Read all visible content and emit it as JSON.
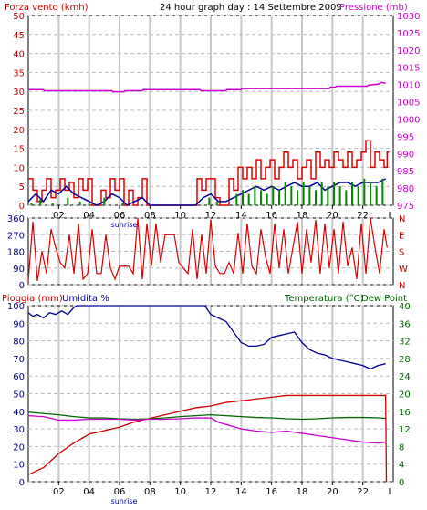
{
  "header": {
    "title": "24 hour graph day : 14 Settembre 2009",
    "left_label": "Forza vento (kmh)",
    "right_label": "Pressione (mb)",
    "colors": {
      "left_label": "#cc0000",
      "title": "#000000",
      "right_label": "#cc00cc"
    }
  },
  "panel2": {
    "colors": {
      "wind_dir": "#dd0000"
    }
  },
  "panel3": {
    "left_label_rain": "Pioggia (mm)",
    "left_label_hum": "Umidita %",
    "right_label_temp": "Temperatura (°C)",
    "right_label_dew": "Dew Point",
    "colors": {
      "rain": "#cc0000",
      "hum": "#000099",
      "temp": "#006600",
      "dew": "#cc00cc"
    }
  },
  "x_axis": {
    "hour_labels": [
      "02",
      "04",
      "06",
      "08",
      "10",
      "12",
      "14",
      "16",
      "18",
      "20",
      "22"
    ],
    "sunrise_label": "sunrise",
    "end_marker": "I"
  },
  "chart_data": [
    {
      "type": "line",
      "name": "wind-pressure",
      "x_range": [
        0,
        24
      ],
      "ylim_left": [
        0,
        50
      ],
      "yticks_left": [
        0,
        5,
        10,
        15,
        20,
        25,
        30,
        35,
        40,
        45,
        50
      ],
      "ylim_right": [
        975,
        1030
      ],
      "yticks_right": [
        975,
        980,
        985,
        990,
        995,
        1000,
        1005,
        1010,
        1015,
        1020,
        1025,
        1030
      ],
      "series": [
        {
          "axis": "right",
          "color": "#cc00cc",
          "x": [
            0,
            1,
            1.05,
            5.5,
            5.55,
            6.3,
            6.35,
            7.5,
            7.55,
            11.3,
            11.35,
            13.0,
            13.05,
            14.0,
            14.05,
            19.8,
            19.85,
            20.2,
            20.25,
            22.3,
            22.35,
            23.0,
            23.2,
            23.5
          ],
          "values": [
            1008.5,
            1008.5,
            1008.2,
            1008.2,
            1007.9,
            1007.9,
            1008.2,
            1008.2,
            1008.5,
            1008.5,
            1008.2,
            1008.2,
            1008.5,
            1008.5,
            1008.8,
            1008.8,
            1009.2,
            1009.2,
            1009.5,
            1009.5,
            1009.8,
            1010.1,
            1010.6,
            1010.4
          ]
        },
        {
          "axis": "left",
          "color": "#dd0000",
          "style": "gust-steps",
          "x": [
            0,
            0.3,
            0.6,
            0.9,
            1.2,
            1.5,
            1.8,
            2.1,
            2.4,
            2.7,
            3.0,
            3.3,
            3.6,
            3.9,
            4.2,
            4.5,
            4.8,
            5.1,
            5.4,
            5.7,
            6.0,
            6.3,
            6.6,
            6.9,
            7.2,
            7.5,
            7.8,
            8.1,
            8.4,
            8.7,
            9.0,
            9.3,
            9.6,
            9.9,
            10.2,
            10.5,
            10.8,
            11.1,
            11.4,
            11.7,
            12.0,
            12.3,
            12.6,
            12.9,
            13.2,
            13.5,
            13.8,
            14.1,
            14.4,
            14.7,
            15.0,
            15.3,
            15.6,
            15.9,
            16.2,
            16.5,
            16.8,
            17.1,
            17.4,
            17.7,
            18.0,
            18.3,
            18.6,
            18.9,
            19.2,
            19.5,
            19.8,
            20.1,
            20.4,
            20.7,
            21.0,
            21.3,
            21.6,
            21.9,
            22.2,
            22.5,
            22.8,
            23.1,
            23.4,
            23.6
          ],
          "values": [
            7,
            4,
            1,
            4,
            7,
            2,
            4,
            7,
            4,
            6,
            2,
            7,
            4,
            7,
            0,
            0,
            4,
            2,
            7,
            4,
            7,
            0,
            4,
            0,
            2,
            7,
            0,
            0,
            0,
            0,
            0,
            0,
            0,
            0,
            0,
            0,
            0,
            7,
            4,
            7,
            7,
            2,
            0,
            0,
            7,
            4,
            10,
            7,
            10,
            7,
            12,
            7,
            10,
            12,
            7,
            10,
            14,
            10,
            12,
            7,
            10,
            12,
            7,
            14,
            10,
            12,
            10,
            14,
            12,
            10,
            14,
            10,
            12,
            14,
            17,
            10,
            14,
            12,
            10,
            14
          ]
        },
        {
          "axis": "left",
          "color": "#000099",
          "x": [
            0,
            0.5,
            1.0,
            1.5,
            2.0,
            2.5,
            3.0,
            3.5,
            4.0,
            4.5,
            5.0,
            5.5,
            6.0,
            6.5,
            7.0,
            7.5,
            8.0,
            8.5,
            9.0,
            9.5,
            10.0,
            10.5,
            11.0,
            11.5,
            12.0,
            12.5,
            13.0,
            13.5,
            14.0,
            14.5,
            15.0,
            15.5,
            16.0,
            16.5,
            17.0,
            17.5,
            18.0,
            18.5,
            19.0,
            19.5,
            20.0,
            20.5,
            21.0,
            21.5,
            22.0,
            22.5,
            23.0,
            23.5
          ],
          "values": [
            1,
            3,
            1,
            4,
            3,
            5,
            3,
            2,
            1,
            0,
            1,
            3,
            2,
            0,
            1,
            2,
            0,
            0,
            0,
            0,
            0,
            0,
            0,
            2,
            3,
            1,
            1,
            2,
            3,
            4,
            5,
            4,
            5,
            4,
            5,
            6,
            5,
            5,
            6,
            4,
            5,
            6,
            6,
            5,
            6,
            6,
            6,
            7
          ]
        },
        {
          "axis": "left",
          "color": "#008800",
          "style": "bars",
          "x": [
            0.2,
            0.8,
            1.6,
            2.6,
            3.4,
            4.0,
            5.0,
            6.2,
            11.9,
            12.4,
            13.7,
            14.1,
            14.5,
            14.9,
            15.3,
            15.7,
            16.1,
            16.5,
            16.9,
            17.3,
            17.7,
            18.1,
            18.5,
            18.9,
            19.3,
            19.7,
            20.1,
            20.5,
            20.9,
            21.3,
            21.7,
            22.1,
            22.5,
            22.9,
            23.3
          ],
          "values": [
            0.5,
            1.5,
            0.5,
            2,
            1,
            0.5,
            2,
            0.5,
            2,
            1,
            3,
            4,
            3,
            5,
            4,
            3,
            5,
            4,
            6,
            5,
            4,
            6,
            5,
            4,
            6,
            5,
            6,
            5,
            4,
            6,
            5,
            7,
            6,
            5,
            7
          ]
        }
      ]
    },
    {
      "type": "line",
      "name": "wind-direction",
      "x_range": [
        0,
        24
      ],
      "ylim": [
        0,
        360
      ],
      "yticks": [
        0,
        90,
        180,
        270,
        360
      ],
      "compass_labels": [
        "N",
        "W",
        "S",
        "E",
        "N"
      ],
      "series": [
        {
          "color": "#dd0000",
          "x": [
            0,
            0.3,
            0.6,
            0.9,
            1.2,
            1.5,
            1.8,
            2.1,
            2.4,
            2.7,
            3.0,
            3.3,
            3.6,
            3.9,
            4.2,
            4.5,
            4.8,
            5.1,
            5.4,
            5.7,
            6.0,
            6.3,
            6.6,
            6.9,
            7.2,
            7.5,
            7.8,
            8.1,
            8.4,
            8.7,
            9.0,
            9.3,
            9.6,
            9.9,
            10.2,
            10.5,
            10.8,
            11.1,
            11.4,
            11.7,
            12.0,
            12.3,
            12.6,
            12.9,
            13.2,
            13.5,
            13.8,
            14.1,
            14.4,
            14.7,
            15.0,
            15.3,
            15.6,
            15.9,
            16.2,
            16.5,
            16.8,
            17.1,
            17.4,
            17.7,
            18.0,
            18.3,
            18.6,
            18.9,
            19.2,
            19.5,
            19.8,
            20.1,
            20.4,
            20.7,
            21.0,
            21.3,
            21.6,
            21.9,
            22.2,
            22.5,
            22.8,
            23.1,
            23.4,
            23.6
          ],
          "values": [
            20,
            340,
            20,
            180,
            60,
            300,
            200,
            120,
            90,
            270,
            60,
            330,
            30,
            60,
            300,
            60,
            60,
            270,
            90,
            30,
            100,
            100,
            100,
            60,
            360,
            30,
            330,
            100,
            330,
            120,
            270,
            270,
            270,
            120,
            90,
            60,
            300,
            30,
            270,
            60,
            350,
            100,
            60,
            60,
            120,
            60,
            280,
            60,
            330,
            100,
            60,
            300,
            150,
            60,
            330,
            90,
            300,
            60,
            200,
            340,
            60,
            300,
            120,
            350,
            60,
            330,
            90,
            300,
            60,
            340,
            100,
            200,
            30,
            330,
            60,
            360,
            200,
            60,
            300,
            200
          ]
        }
      ]
    },
    {
      "type": "line",
      "name": "rain-humidity-temp",
      "x_range": [
        0,
        24
      ],
      "ylim_left": [
        0,
        100
      ],
      "yticks_left": [
        0,
        10,
        20,
        30,
        40,
        50,
        60,
        70,
        80,
        90,
        100
      ],
      "ylim_right": [
        0,
        40
      ],
      "yticks_right": [
        0,
        4,
        8,
        12,
        16,
        20,
        24,
        28,
        32,
        36,
        40
      ],
      "series": [
        {
          "axis": "right",
          "color": "#000099",
          "name": "humidity",
          "x": [
            0,
            0.3,
            0.6,
            1.0,
            1.4,
            1.8,
            2.2,
            2.6,
            3.0,
            3.2,
            4.0,
            5.0,
            6.0,
            7.0,
            8.0,
            9.0,
            10.0,
            11.0,
            11.6,
            12.0,
            12.5,
            13.0,
            13.5,
            14.0,
            14.5,
            15.0,
            15.5,
            16.0,
            16.5,
            17.0,
            17.5,
            18.0,
            18.5,
            19.0,
            19.5,
            20.0,
            20.5,
            21.0,
            21.5,
            22.0,
            22.5,
            23.0,
            23.5
          ],
          "values": [
            96,
            94,
            95,
            93,
            96,
            95,
            97,
            95,
            99,
            100,
            100,
            100,
            100,
            100,
            100,
            100,
            100,
            100,
            100,
            95,
            93,
            91,
            85,
            79,
            77,
            77,
            78,
            82,
            83,
            84,
            85,
            79,
            75,
            73,
            72,
            70,
            69,
            68,
            67,
            66,
            64,
            66,
            67
          ]
        },
        {
          "axis": "left",
          "color": "#cc0000",
          "name": "rain",
          "x": [
            0,
            0.5,
            1.0,
            1.5,
            2.0,
            3.0,
            4.0,
            5.0,
            6.0,
            7.0,
            8.0,
            9.0,
            10.0,
            11.0,
            12.0,
            13.0,
            14.0,
            15.0,
            16.0,
            17.0,
            18.0,
            19.0,
            20.0,
            21.0,
            22.0,
            23.0,
            23.5,
            23.55
          ],
          "values": [
            4,
            6,
            8,
            12,
            16,
            22,
            27,
            29,
            31,
            34,
            36,
            38,
            40,
            42,
            43,
            45,
            46,
            47,
            48,
            49,
            49,
            49,
            49,
            49,
            49,
            49,
            49,
            0
          ]
        },
        {
          "axis": "right",
          "color": "#006600",
          "name": "temp",
          "x": [
            0,
            1,
            2,
            3,
            4,
            5,
            6,
            7,
            8,
            9,
            10,
            11,
            12,
            13,
            14,
            15,
            16,
            17,
            18,
            19,
            20,
            21,
            22,
            23,
            23.5
          ],
          "values": [
            15.8,
            15.5,
            15.2,
            14.8,
            14.5,
            14.5,
            14.3,
            14.2,
            14.3,
            14.5,
            14.8,
            15.0,
            15.2,
            15.0,
            14.8,
            14.6,
            14.5,
            14.3,
            14.2,
            14.3,
            14.5,
            14.6,
            14.6,
            14.5,
            14.4
          ]
        },
        {
          "axis": "right",
          "color": "#cc00cc",
          "name": "dew",
          "x": [
            0,
            1,
            2,
            3,
            4,
            5,
            6,
            7,
            8,
            9,
            10,
            11,
            12,
            12.5,
            13,
            14,
            15,
            16,
            17,
            18,
            19,
            20,
            21,
            22,
            23,
            23.5
          ],
          "values": [
            15.0,
            14.8,
            14.0,
            14.0,
            14.2,
            14.2,
            14.2,
            14.0,
            14.2,
            14.2,
            14.3,
            14.5,
            14.5,
            13.5,
            13.0,
            12.0,
            11.5,
            11.2,
            11.5,
            11.0,
            10.5,
            10.0,
            9.5,
            9.0,
            8.8,
            9.0
          ]
        }
      ]
    }
  ]
}
